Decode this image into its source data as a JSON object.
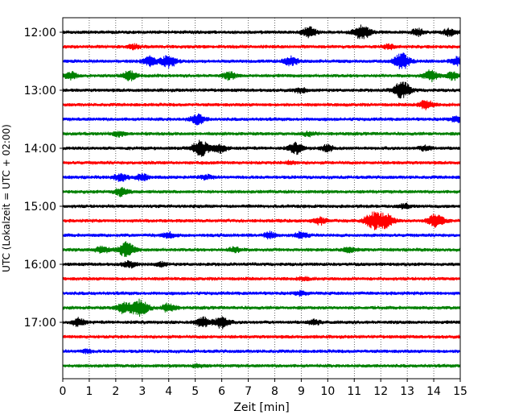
{
  "chart_data": {
    "type": "line",
    "title": "",
    "xlabel": "Zeit  [min]",
    "ylabel": "UTC (Lokalzeit = UTC + 02:00)",
    "xlim": [
      0,
      15
    ],
    "x_ticks": [
      0,
      1,
      2,
      3,
      4,
      5,
      6,
      7,
      8,
      9,
      10,
      11,
      12,
      13,
      14,
      15
    ],
    "y_tick_labels": [
      "12:00",
      "13:00",
      "14:00",
      "15:00",
      "16:00",
      "17:00"
    ],
    "grid": "vertical dotted",
    "trace_interval_min": 15,
    "colors": [
      "#000000",
      "#ff0000",
      "#0000ff",
      "#008000"
    ],
    "traces": [
      {
        "start": "12:00",
        "color": "#000000",
        "bursts": [
          [
            9.3,
            1.0
          ],
          [
            11.3,
            1.4
          ],
          [
            13.4,
            0.6
          ],
          [
            14.6,
            0.7
          ]
        ]
      },
      {
        "start": "12:15",
        "color": "#ff0000",
        "bursts": [
          [
            2.7,
            0.4
          ],
          [
            12.3,
            0.4
          ]
        ]
      },
      {
        "start": "12:30",
        "color": "#0000ff",
        "bursts": [
          [
            3.3,
            0.9
          ],
          [
            4.0,
            1.2
          ],
          [
            8.6,
            0.9
          ],
          [
            12.8,
            1.5
          ],
          [
            14.9,
            0.8
          ]
        ]
      },
      {
        "start": "12:45",
        "color": "#008000",
        "bursts": [
          [
            0.3,
            0.7
          ],
          [
            2.5,
            0.9
          ],
          [
            6.3,
            0.7
          ],
          [
            13.9,
            1.0
          ],
          [
            14.7,
            0.8
          ]
        ]
      },
      {
        "start": "13:00",
        "color": "#000000",
        "bursts": [
          [
            9.0,
            0.5
          ],
          [
            12.8,
            1.6
          ]
        ]
      },
      {
        "start": "13:15",
        "color": "#ff0000",
        "bursts": [
          [
            13.7,
            0.9
          ]
        ]
      },
      {
        "start": "13:30",
        "color": "#0000ff",
        "bursts": [
          [
            5.1,
            1.0
          ],
          [
            14.9,
            0.6
          ]
        ]
      },
      {
        "start": "13:45",
        "color": "#008000",
        "bursts": [
          [
            2.1,
            0.5
          ],
          [
            9.3,
            0.4
          ]
        ]
      },
      {
        "start": "14:00",
        "color": "#000000",
        "bursts": [
          [
            5.2,
            1.5
          ],
          [
            5.9,
            0.9
          ],
          [
            8.8,
            1.0
          ],
          [
            10.0,
            0.6
          ],
          [
            13.7,
            0.5
          ]
        ]
      },
      {
        "start": "14:15",
        "color": "#ff0000",
        "bursts": [
          [
            8.6,
            0.3
          ]
        ]
      },
      {
        "start": "14:30",
        "color": "#0000ff",
        "bursts": [
          [
            2.2,
            0.8
          ],
          [
            3.0,
            0.6
          ],
          [
            5.4,
            0.4
          ]
        ]
      },
      {
        "start": "14:45",
        "color": "#008000",
        "bursts": [
          [
            2.2,
            0.8
          ]
        ]
      },
      {
        "start": "15:00",
        "color": "#000000",
        "bursts": [
          [
            12.9,
            0.4
          ]
        ]
      },
      {
        "start": "15:15",
        "color": "#ff0000",
        "bursts": [
          [
            9.7,
            0.7
          ],
          [
            11.7,
            1.6
          ],
          [
            12.2,
            1.3
          ],
          [
            14.1,
            1.4
          ]
        ]
      },
      {
        "start": "15:30",
        "color": "#0000ff",
        "bursts": [
          [
            4.0,
            0.5
          ],
          [
            7.8,
            0.6
          ],
          [
            9.0,
            0.6
          ]
        ]
      },
      {
        "start": "15:45",
        "color": "#008000",
        "bursts": [
          [
            1.5,
            0.7
          ],
          [
            2.4,
            1.4
          ],
          [
            6.5,
            0.5
          ],
          [
            10.8,
            0.5
          ]
        ]
      },
      {
        "start": "16:00",
        "color": "#000000",
        "bursts": [
          [
            2.5,
            0.6
          ],
          [
            3.7,
            0.4
          ]
        ]
      },
      {
        "start": "16:15",
        "color": "#ff0000",
        "bursts": [
          [
            9.1,
            0.3
          ]
        ]
      },
      {
        "start": "16:30",
        "color": "#0000ff",
        "bursts": [
          [
            9.0,
            0.4
          ]
        ]
      },
      {
        "start": "16:45",
        "color": "#008000",
        "bursts": [
          [
            2.3,
            1.0
          ],
          [
            2.9,
            1.6
          ],
          [
            4.0,
            0.8
          ]
        ]
      },
      {
        "start": "17:00",
        "color": "#000000",
        "bursts": [
          [
            0.6,
            0.7
          ],
          [
            5.3,
            1.0
          ],
          [
            6.0,
            1.1
          ],
          [
            9.5,
            0.5
          ]
        ]
      },
      {
        "start": "17:15",
        "color": "#ff0000",
        "bursts": []
      },
      {
        "start": "17:30",
        "color": "#0000ff",
        "bursts": [
          [
            0.9,
            0.3
          ]
        ]
      },
      {
        "start": "17:45",
        "color": "#008000",
        "bursts": [
          [
            5.1,
            0.3
          ]
        ]
      }
    ]
  }
}
